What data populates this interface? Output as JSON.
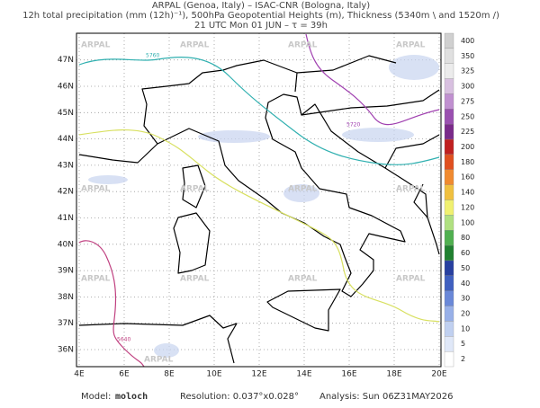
{
  "header": {
    "line1": "ARPAL (Genoa, Italy)  –  ISAC-CNR (Bologna, Italy)",
    "line2": "12h total precipitation (mm (12h)⁻¹), 500hPa Geopotential Heights (m), Thickness (5340m \\ and 1520m /)",
    "line3": "21 UTC Mon 01 JUN  –  τ = 39h"
  },
  "map": {
    "lon_labels": [
      "4E",
      "6E",
      "8E",
      "10E",
      "12E",
      "14E",
      "16E",
      "18E",
      "20E"
    ],
    "lat_labels": [
      "36N",
      "37N",
      "38N",
      "39N",
      "40N",
      "41N",
      "42N",
      "43N",
      "44N",
      "45N",
      "46N",
      "47N"
    ],
    "contour_labels": [
      "5760",
      "5720",
      "5640"
    ],
    "watermark": "ARPAL"
  },
  "colorbar": {
    "labels": [
      400,
      350,
      325,
      300,
      275,
      250,
      225,
      200,
      180,
      160,
      140,
      120,
      100,
      80,
      60,
      50,
      40,
      30,
      20,
      10,
      5,
      2
    ],
    "colors": [
      "#d0d0d0",
      "#e0e0e0",
      "#ececec",
      "#d8c0e0",
      "#c090d0",
      "#9a50b0",
      "#7a2a8a",
      "#c02020",
      "#e05020",
      "#f08a30",
      "#f0c040",
      "#f0f070",
      "#b0e080",
      "#50b050",
      "#208030",
      "#2840a0",
      "#4060c0",
      "#6a88d8",
      "#98b0e8",
      "#c0d0f0",
      "#e0e8f8",
      "#ffffff"
    ]
  },
  "footer": {
    "model_label": "Model:",
    "model": "moloch",
    "resolution": "Resolution: 0.037°x0.028°",
    "analysis": "Analysis: Sun 06Z31MAY2026"
  }
}
